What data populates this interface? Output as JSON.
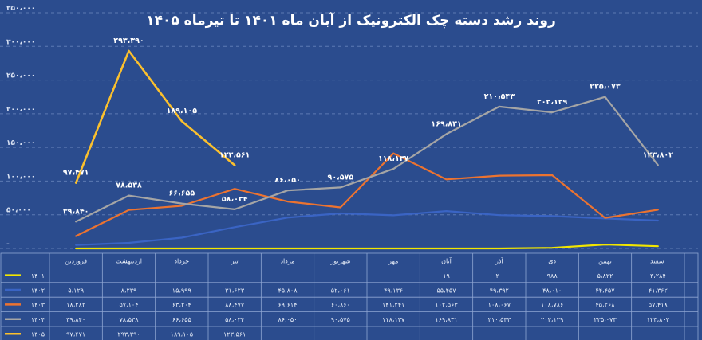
{
  "chart_data": {
    "type": "line",
    "title": "روند رشد دسته چک الکترونیک از آبان ماه ۱۴۰۱ تا تیرماه ۱۴۰۵",
    "ylim": [
      0,
      350000
    ],
    "yticks": [
      "-",
      "۵۰،۰۰۰",
      "۱۰۰،۰۰۰",
      "۱۵۰،۰۰۰",
      "۲۰۰،۰۰۰",
      "۲۵۰،۰۰۰",
      "۳۰۰،۰۰۰",
      "۳۵۰،۰۰۰"
    ],
    "categories": [
      "فروردین",
      "اردیبهشت",
      "خرداد",
      "تیر",
      "مرداد",
      "شهریور",
      "مهر",
      "آبان",
      "آذر",
      "دی",
      "بهمن",
      "اسفند"
    ],
    "grid": true,
    "series": [
      {
        "name": "۱۴۰۱",
        "color": "#f2e600",
        "values": [
          0,
          0,
          0,
          0,
          0,
          0,
          0,
          19,
          20,
          988,
          5822,
          3284
        ],
        "cells": [
          "۰",
          "۰",
          "۰",
          "۰",
          "۰",
          "۰",
          "۰",
          "۱۹",
          "۲۰",
          "۹۸۸",
          "۵،۸۲۲",
          "۳،۲۸۴"
        ]
      },
      {
        "name": "۱۴۰۲",
        "color": "#3a64c4",
        "values": [
          5129,
          8239,
          15999,
          31623,
          45808,
          52061,
          49136,
          55457,
          49392,
          48010,
          44457,
          41362
        ],
        "cells": [
          "۵،۱۲۹",
          "۸،۲۳۹",
          "۱۵،۹۹۹",
          "۳۱،۶۲۳",
          "۴۵،۸۰۸",
          "۵۲،۰۶۱",
          "۴۹،۱۳۶",
          "۵۵،۴۵۷",
          "۴۹،۳۹۲",
          "۴۸،۰۱۰",
          "۴۴،۴۵۷",
          "۴۱،۳۶۲"
        ]
      },
      {
        "name": "۱۴۰۳",
        "color": "#ec7330",
        "values": [
          18282,
          57104,
          63204,
          88477,
          69614,
          60860,
          141241,
          102563,
          108067,
          108786,
          45268,
          57418
        ],
        "cells": [
          "۱۸،۲۸۲",
          "۵۷،۱۰۴",
          "۶۳،۲۰۴",
          "۸۸،۴۷۷",
          "۶۹،۶۱۴",
          "۶۰،۸۶۰",
          "۱۴۱،۲۴۱",
          "۱۰۲،۵۶۳",
          "۱۰۸،۰۶۷",
          "۱۰۸،۷۸۶",
          "۴۵،۲۶۸",
          "۵۷،۴۱۸"
        ]
      },
      {
        "name": "۱۴۰۴",
        "color": "#a5a5a5",
        "values": [
          39840,
          78538,
          66655,
          58024,
          86050,
          90575,
          118137,
          169831,
          210543,
          202129,
          225073,
          123802
        ],
        "cells": [
          "۳۹،۸۴۰",
          "۷۸،۵۳۸",
          "۶۶،۶۵۵",
          "۵۸،۰۲۴",
          "۸۶،۰۵۰",
          "۹۰،۵۷۵",
          "۱۱۸،۱۳۷",
          "۱۶۹،۸۳۱",
          "۲۱۰،۵۴۳",
          "۲۰۲،۱۲۹",
          "۲۲۵،۰۷۳",
          "۱۲۳،۸۰۲"
        ]
      },
      {
        "name": "۱۴۰۵",
        "color": "#fbc02d",
        "values": [
          97471,
          293390,
          189105,
          123561,
          null,
          null,
          null,
          null,
          null,
          null,
          null,
          null
        ],
        "cells": [
          "۹۷،۴۷۱",
          "۲۹۳،۳۹۰",
          "۱۸۹،۱۰۵",
          "۱۲۳،۵۶۱",
          "",
          "",
          "",
          "",
          "",
          "",
          "",
          ""
        ]
      }
    ],
    "data_labels": [
      {
        "series": 3,
        "index": 0,
        "text": "۳۹،۸۴۰"
      },
      {
        "series": 4,
        "index": 0,
        "text": "۹۷،۴۷۱"
      },
      {
        "series": 4,
        "index": 1,
        "text": "۲۹۳،۳۹۰"
      },
      {
        "series": 3,
        "index": 1,
        "text": "۷۸،۵۳۸"
      },
      {
        "series": 4,
        "index": 2,
        "text": "۱۸۹،۱۰۵"
      },
      {
        "series": 3,
        "index": 2,
        "text": "۶۶،۶۵۵"
      },
      {
        "series": 4,
        "index": 3,
        "text": "۱۲۳،۵۶۱"
      },
      {
        "series": 3,
        "index": 3,
        "text": "۵۸،۰۲۴"
      },
      {
        "series": 3,
        "index": 4,
        "text": "۸۶،۰۵۰"
      },
      {
        "series": 3,
        "index": 5,
        "text": "۹۰،۵۷۵"
      },
      {
        "series": 3,
        "index": 6,
        "text": "۱۱۸،۱۳۷"
      },
      {
        "series": 3,
        "index": 7,
        "text": "۱۶۹،۸۳۱"
      },
      {
        "series": 3,
        "index": 8,
        "text": "۲۱۰،۵۴۳"
      },
      {
        "series": 3,
        "index": 9,
        "text": "۲۰۲،۱۲۹"
      },
      {
        "series": 3,
        "index": 10,
        "text": "۲۲۵،۰۷۳"
      },
      {
        "series": 3,
        "index": 11,
        "text": "۱۲۳،۸۰۲"
      }
    ]
  }
}
